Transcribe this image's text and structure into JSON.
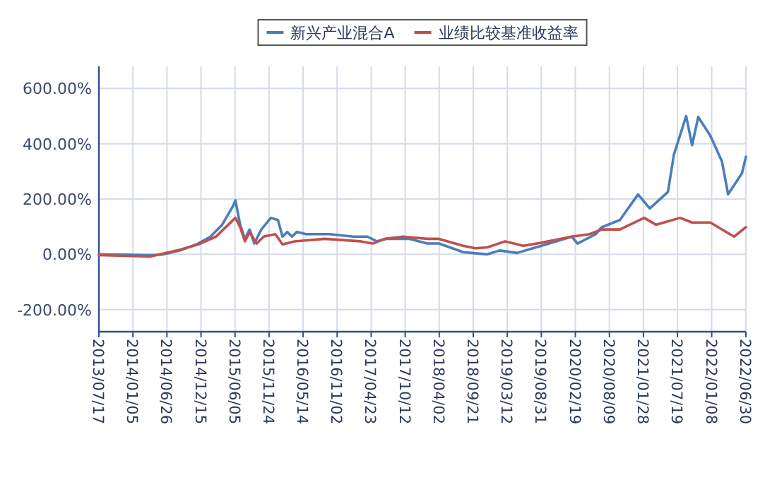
{
  "chart_data": {
    "type": "line",
    "legend": "top",
    "grid": true,
    "marker": "none",
    "line_style": "solid",
    "xlim": [
      "2013-07-17",
      "2022-06-30"
    ],
    "xticks": [
      {
        "value": "2013-07-17",
        "label": "2013/07/17"
      },
      {
        "value": "2014-01-05",
        "label": "2014/01/05"
      },
      {
        "value": "2014-06-26",
        "label": "2014/06/26"
      },
      {
        "value": "2014-12-15",
        "label": "2014/12/15"
      },
      {
        "value": "2015-06-05",
        "label": "2015/06/05"
      },
      {
        "value": "2015-11-24",
        "label": "2015/11/24"
      },
      {
        "value": "2016-05-14",
        "label": "2016/05/14"
      },
      {
        "value": "2016-11-02",
        "label": "2016/11/02"
      },
      {
        "value": "2017-04-23",
        "label": "2017/04/23"
      },
      {
        "value": "2017-10-12",
        "label": "2017/10/12"
      },
      {
        "value": "2018-04-02",
        "label": "2018/04/02"
      },
      {
        "value": "2018-09-21",
        "label": "2018/09/21"
      },
      {
        "value": "2019-03-12",
        "label": "2019/03/12"
      },
      {
        "value": "2019-08-31",
        "label": "2019/08/31"
      },
      {
        "value": "2020-02-19",
        "label": "2020/02/19"
      },
      {
        "value": "2020-08-09",
        "label": "2020/08/09"
      },
      {
        "value": "2021-01-28",
        "label": "2021/01/28"
      },
      {
        "value": "2021-07-19",
        "label": "2021/07/19"
      },
      {
        "value": "2022-01-08",
        "label": "2022/01/08"
      },
      {
        "value": "2022-06-30",
        "label": "2022/06/30"
      }
    ],
    "ylim": [
      -280,
      680
    ],
    "yticks": [
      {
        "value": -200,
        "label": "-200.00%"
      },
      {
        "value": 0,
        "label": "0.00%"
      },
      {
        "value": 200,
        "label": "200.00%"
      },
      {
        "value": 400,
        "label": "400.00%"
      },
      {
        "value": 600,
        "label": "600.00%"
      }
    ],
    "series": [
      {
        "name": "新兴产业混合A",
        "color": "#4a7ebb",
        "x": [
          "2013-07-17",
          "2013-12",
          "2014-04",
          "2014-06",
          "2014-09",
          "2014-12",
          "2015-02",
          "2015-04",
          "2015-05-26",
          "2015-06-07",
          "2015-07-01",
          "2015-07-25",
          "2015-08-18",
          "2015-09-10",
          "2015-10-16",
          "2015-12-03",
          "2016-01-08",
          "2016-01-31",
          "2016-02-24",
          "2016-03-19",
          "2016-04-12",
          "2016-05-29",
          "2016-09-25",
          "2017-01-22",
          "2017-04-04",
          "2017-05-21",
          "2017-07-08",
          "2017-11-04",
          "2018-02",
          "2018-04",
          "2018-08",
          "2018-12",
          "2019-02",
          "2019-05",
          "2019-09",
          "2020-02",
          "2020-03",
          "2020-06",
          "2020-07",
          "2020-10",
          "2021-01",
          "2021-03",
          "2021-06",
          "2021-07",
          "2021-09",
          "2021-10",
          "2021-11",
          "2022-01",
          "2022-03",
          "2022-04",
          "2022-06-10",
          "2022-06-30"
        ],
        "values": [
          0,
          -1,
          -3,
          -1,
          14,
          39,
          64,
          107,
          175,
          195,
          107,
          56,
          90,
          39,
          90,
          132,
          124,
          64,
          81,
          64,
          81,
          73,
          73,
          64,
          64,
          47,
          56,
          56,
          39,
          39,
          8,
          0,
          14,
          5,
          31,
          64,
          39,
          73,
          98,
          124,
          217,
          166,
          226,
          361,
          500,
          395,
          497,
          429,
          336,
          217,
          293,
          353
        ]
      },
      {
        "name": "业绩比较基准收益率",
        "color": "#c0504d",
        "x": [
          "2013-07-17",
          "2014-04",
          "2014-09",
          "2014-12",
          "2015-03",
          "2015-06-07",
          "2015-07-01",
          "2015-07-25",
          "2015-08-18",
          "2015-09-22",
          "2015-10-28",
          "2015-12-26",
          "2016-01-31",
          "2016-04",
          "2016-09",
          "2017-03",
          "2017-05",
          "2017-07",
          "2017-10",
          "2018-02",
          "2018-04",
          "2018-08",
          "2018-10",
          "2018-12",
          "2019-03",
          "2019-06",
          "2019-09",
          "2020-02",
          "2020-05",
          "2020-07",
          "2020-10",
          "2021-02",
          "2021-04",
          "2021-08",
          "2021-10",
          "2022-01",
          "2022-05",
          "2022-06-30"
        ],
        "values": [
          -3,
          -8,
          17,
          36,
          64,
          132,
          98,
          47,
          81,
          39,
          64,
          73,
          36,
          47,
          56,
          47,
          39,
          56,
          64,
          56,
          56,
          31,
          22,
          25,
          47,
          31,
          42,
          64,
          73,
          90,
          90,
          132,
          107,
          132,
          115,
          115,
          64,
          98
        ]
      }
    ]
  }
}
